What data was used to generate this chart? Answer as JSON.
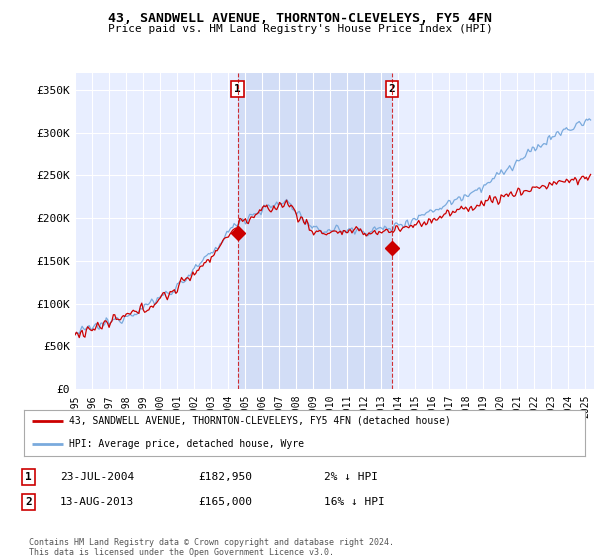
{
  "title": "43, SANDWELL AVENUE, THORNTON-CLEVELEYS, FY5 4FN",
  "subtitle": "Price paid vs. HM Land Registry's House Price Index (HPI)",
  "ylabel_ticks": [
    "£0",
    "£50K",
    "£100K",
    "£150K",
    "£200K",
    "£250K",
    "£300K",
    "£350K"
  ],
  "ytick_values": [
    0,
    50000,
    100000,
    150000,
    200000,
    250000,
    300000,
    350000
  ],
  "ylim": [
    0,
    370000
  ],
  "xlim_start": 1995.0,
  "xlim_end": 2025.5,
  "background_color": "#ffffff",
  "plot_bg_color": "#e8eeff",
  "shade_color": "#d0dcf5",
  "grid_color": "#ffffff",
  "sale1": {
    "date_num": 2004.55,
    "price": 182950,
    "label": "1"
  },
  "sale2": {
    "date_num": 2013.62,
    "price": 165000,
    "label": "2"
  },
  "legend_line1": "43, SANDWELL AVENUE, THORNTON-CLEVELEYS, FY5 4FN (detached house)",
  "legend_line2": "HPI: Average price, detached house, Wyre",
  "table_rows": [
    [
      "1",
      "23-JUL-2004",
      "£182,950",
      "2% ↓ HPI"
    ],
    [
      "2",
      "13-AUG-2013",
      "£165,000",
      "16% ↓ HPI"
    ]
  ],
  "footer": "Contains HM Land Registry data © Crown copyright and database right 2024.\nThis data is licensed under the Open Government Licence v3.0.",
  "sale_color": "#cc0000",
  "hpi_color": "#7aaadd",
  "vline_color": "#cc0000"
}
